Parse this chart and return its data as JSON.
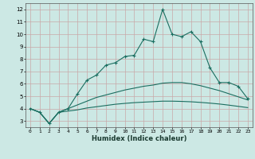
{
  "xlabel": "Humidex (Indice chaleur)",
  "background_color": "#cce8e4",
  "grid_color": "#c8a8a8",
  "line_color": "#1a6e60",
  "xlim": [
    -0.5,
    23.5
  ],
  "ylim": [
    2.5,
    12.5
  ],
  "xticks": [
    0,
    1,
    2,
    3,
    4,
    5,
    6,
    7,
    8,
    9,
    10,
    11,
    12,
    13,
    14,
    15,
    16,
    17,
    18,
    19,
    20,
    21,
    22,
    23
  ],
  "yticks": [
    3,
    4,
    5,
    6,
    7,
    8,
    9,
    10,
    11,
    12
  ],
  "series1_x": [
    0,
    1,
    2,
    3,
    4,
    5,
    6,
    7,
    8,
    9,
    10,
    11,
    12,
    13,
    14,
    15,
    16,
    17,
    18,
    19,
    20,
    21,
    22,
    23
  ],
  "series1_y": [
    4.0,
    3.7,
    2.8,
    3.7,
    4.0,
    5.2,
    6.3,
    6.7,
    7.5,
    7.7,
    8.2,
    8.3,
    9.6,
    9.4,
    12.0,
    10.0,
    9.8,
    10.2,
    9.4,
    7.3,
    6.1,
    6.1,
    5.8,
    4.8
  ],
  "series2_x": [
    0,
    1,
    2,
    3,
    4,
    5,
    6,
    7,
    8,
    9,
    10,
    11,
    12,
    13,
    14,
    15,
    16,
    17,
    18,
    19,
    20,
    21,
    22,
    23
  ],
  "series2_y": [
    4.0,
    3.7,
    2.8,
    3.7,
    4.0,
    4.3,
    4.6,
    4.9,
    5.1,
    5.3,
    5.5,
    5.65,
    5.8,
    5.9,
    6.05,
    6.1,
    6.1,
    6.0,
    5.85,
    5.65,
    5.45,
    5.2,
    4.95,
    4.7
  ],
  "series3_x": [
    0,
    1,
    2,
    3,
    4,
    5,
    6,
    7,
    8,
    9,
    10,
    11,
    12,
    13,
    14,
    15,
    16,
    17,
    18,
    19,
    20,
    21,
    22,
    23
  ],
  "series3_y": [
    4.0,
    3.7,
    2.8,
    3.7,
    3.8,
    3.9,
    4.05,
    4.15,
    4.25,
    4.35,
    4.42,
    4.48,
    4.52,
    4.56,
    4.6,
    4.6,
    4.58,
    4.55,
    4.5,
    4.44,
    4.37,
    4.28,
    4.18,
    4.08
  ]
}
